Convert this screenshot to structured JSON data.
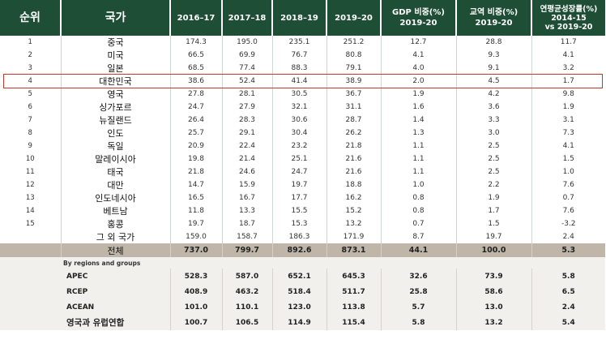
{
  "header": {
    "rank": "순위",
    "country": "국가",
    "y1": "2016–17",
    "y2": "2017–18",
    "y3": "2018–19",
    "y4": "2019–20",
    "gdp_line1": "GDP 비중(%)",
    "gdp_line2": "2019-20",
    "trade_line1": "교역 비중(%)",
    "trade_line2": "2019-20",
    "growth_line1": "연평균성장률(%)",
    "growth_line2": "2014-15",
    "growth_line3": "vs 2019-20"
  },
  "rows": [
    {
      "rank": "1",
      "country": "중국",
      "y1": "174.3",
      "y2": "195.0",
      "y3": "235.1",
      "y4": "251.2",
      "gdp": "12.7",
      "trade": "28.8",
      "growth": "11.7"
    },
    {
      "rank": "2",
      "country": "미국",
      "y1": "66.5",
      "y2": "69.9",
      "y3": "76.7",
      "y4": "80.8",
      "gdp": "4.1",
      "trade": "9.3",
      "growth": "4.1"
    },
    {
      "rank": "3",
      "country": "일본",
      "y1": "68.5",
      "y2": "77.4",
      "y3": "88.3",
      "y4": "79.1",
      "gdp": "4.0",
      "trade": "9.1",
      "growth": "3.2"
    },
    {
      "rank": "4",
      "country": "대한민국",
      "y1": "38.6",
      "y2": "52.4",
      "y3": "41.4",
      "y4": "38.9",
      "gdp": "2.0",
      "trade": "4.5",
      "growth": "1.7"
    },
    {
      "rank": "5",
      "country": "영국",
      "y1": "27.8",
      "y2": "28.1",
      "y3": "30.5",
      "y4": "36.7",
      "gdp": "1.9",
      "trade": "4.2",
      "growth": "9.8"
    },
    {
      "rank": "6",
      "country": "싱가포르",
      "y1": "24.7",
      "y2": "27.9",
      "y3": "32.1",
      "y4": "31.1",
      "gdp": "1.6",
      "trade": "3.6",
      "growth": "1.9"
    },
    {
      "rank": "7",
      "country": "뉴질랜드",
      "y1": "26.4",
      "y2": "28.3",
      "y3": "30.6",
      "y4": "28.7",
      "gdp": "1.4",
      "trade": "3.3",
      "growth": "3.1"
    },
    {
      "rank": "8",
      "country": "인도",
      "y1": "25.7",
      "y2": "29.1",
      "y3": "30.4",
      "y4": "26.2",
      "gdp": "1.3",
      "trade": "3.0",
      "growth": "7.3"
    },
    {
      "rank": "9",
      "country": "독일",
      "y1": "20.9",
      "y2": "22.4",
      "y3": "23.2",
      "y4": "21.8",
      "gdp": "1.1",
      "trade": "2.5",
      "growth": "4.1"
    },
    {
      "rank": "10",
      "country": "말레이시아",
      "y1": "19.8",
      "y2": "21.4",
      "y3": "25.1",
      "y4": "21.6",
      "gdp": "1.1",
      "trade": "2.5",
      "growth": "1.5"
    },
    {
      "rank": "11",
      "country": "태국",
      "y1": "21.8",
      "y2": "24.6",
      "y3": "24.7",
      "y4": "21.6",
      "gdp": "1.1",
      "trade": "2.5",
      "growth": "1.0"
    },
    {
      "rank": "12",
      "country": "대만",
      "y1": "14.7",
      "y2": "15.9",
      "y3": "19.7",
      "y4": "18.8",
      "gdp": "1.0",
      "trade": "2.2",
      "growth": "7.6"
    },
    {
      "rank": "13",
      "country": "인도네시아",
      "y1": "16.5",
      "y2": "16.7",
      "y3": "17.7",
      "y4": "16.2",
      "gdp": "0.8",
      "trade": "1.9",
      "growth": "0.7"
    },
    {
      "rank": "14",
      "country": "베트남",
      "y1": "11.8",
      "y2": "13.3",
      "y3": "15.5",
      "y4": "15.2",
      "gdp": "0.8",
      "trade": "1.7",
      "growth": "7.6"
    },
    {
      "rank": "15",
      "country": "홍콩",
      "y1": "19.7",
      "y2": "18.7",
      "y3": "15.3",
      "y4": "13.2",
      "gdp": "0.7",
      "trade": "1.5",
      "growth": "-3.2"
    },
    {
      "rank": "",
      "country": "그 외 국가",
      "y1": "159.0",
      "y2": "158.7",
      "y3": "186.3",
      "y4": "171.9",
      "gdp": "8.7",
      "trade": "19.7",
      "growth": "2.4"
    }
  ],
  "total": {
    "country": "전체",
    "y1": "737.0",
    "y2": "799.7",
    "y3": "892.6",
    "y4": "873.1",
    "gdp": "44.1",
    "trade": "100.0",
    "growth": "5.3"
  },
  "groups_heading": "By regions and groups",
  "groups": [
    {
      "name": "APEC",
      "y1": "528.3",
      "y2": "587.0",
      "y3": "652.1",
      "y4": "645.3",
      "gdp": "32.6",
      "trade": "73.9",
      "growth": "5.8"
    },
    {
      "name": "RCEP",
      "y1": "408.9",
      "y2": "463.2",
      "y3": "518.4",
      "y4": "511.7",
      "gdp": "25.8",
      "trade": "58.6",
      "growth": "6.5"
    },
    {
      "name": "ACEAN",
      "y1": "101.0",
      "y2": "110.1",
      "y3": "123.0",
      "y4": "113.8",
      "gdp": "5.7",
      "trade": "13.0",
      "growth": "2.4"
    },
    {
      "name": "영국과 유럽연합",
      "y1": "100.7",
      "y2": "106.5",
      "y3": "114.9",
      "y4": "115.4",
      "gdp": "5.8",
      "trade": "13.2",
      "growth": "5.4"
    }
  ],
  "highlight_rank": "4",
  "colors": {
    "header_bg": "#1f4e36",
    "total_bg": "#bfb6a9",
    "group_bg": "#f2f0ed",
    "highlight_border": "#c0392b"
  }
}
